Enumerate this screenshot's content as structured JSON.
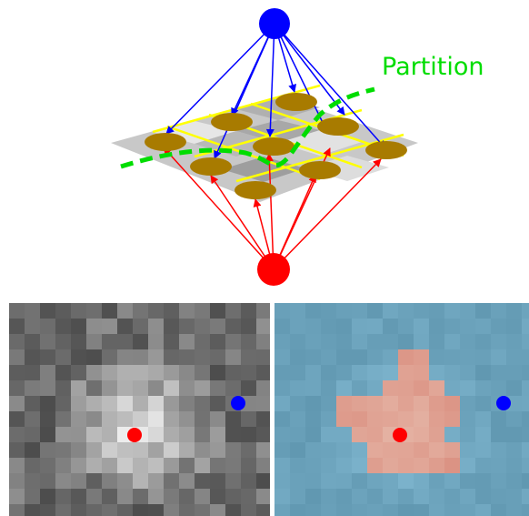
{
  "partition_label": "Partition",
  "colors": {
    "source_node": "#0000ff",
    "sink_node": "#ff0000",
    "pixel_node": "#a87b00",
    "grid_line": "#ffff00",
    "partition_curve": "#00dd00",
    "source_edges": "#0000ff",
    "sink_edges": "#ff0000",
    "background_tint": "#6fa8c0",
    "foreground_tint": "#e0907a"
  },
  "bottom_images": {
    "left": {
      "name": "grayscale-image",
      "seed_fg": "red",
      "seed_bg": "blue"
    },
    "right": {
      "name": "segmentation-result",
      "seed_fg": "red",
      "seed_bg": "blue"
    }
  }
}
